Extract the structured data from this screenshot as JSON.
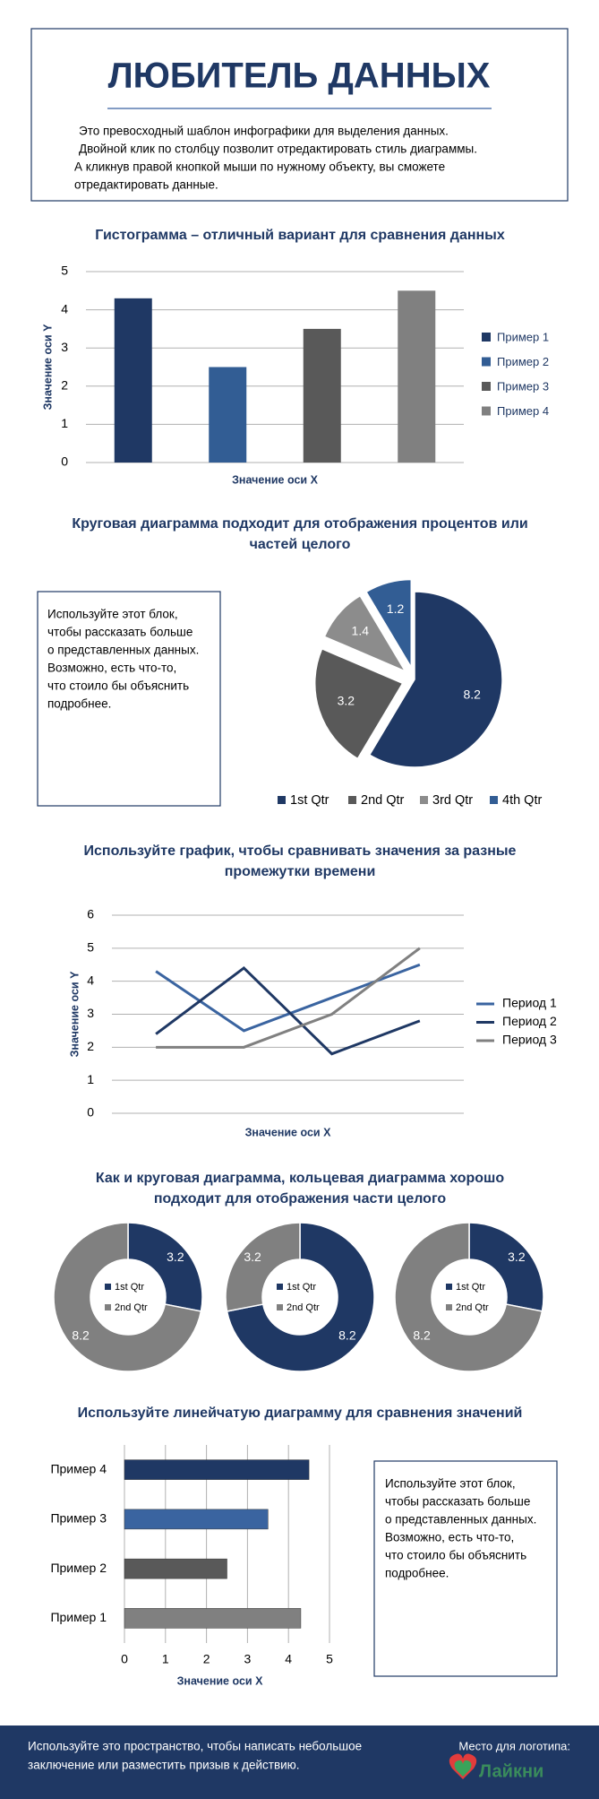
{
  "header": {
    "title": "ЛЮБИТЕЛЬ ДАННЫХ",
    "paragraph": [
      "Это превосходный шаблон инфографики для выделения данных.",
      "Двойной клик по столбцу позволит отредактировать стиль диаграммы.",
      "А кликнув правой кнопкой мыши по нужному объекту, вы сможете",
      "отредактировать данные."
    ]
  },
  "chart_data": [
    {
      "type": "bar",
      "title": "Гистограмма – отличный вариант для сравнения данных",
      "categories": [
        "Пример 1",
        "Пример 2",
        "Пример 3",
        "Пример 4"
      ],
      "values": [
        4.3,
        2.5,
        3.5,
        4.5
      ],
      "colors": [
        "#1f3864",
        "#325d94",
        "#595959",
        "#808080"
      ],
      "xlabel": "Значение оси X",
      "ylabel": "Значение оси Y",
      "ylim": [
        0,
        5
      ],
      "yticks": [
        0,
        1,
        2,
        3,
        4,
        5
      ],
      "grid": true,
      "legend": "right"
    },
    {
      "type": "pie",
      "title": "Круговая диаграмма подходит для отображения процентов или частей целого",
      "categories": [
        "1st Qtr",
        "2nd Qtr",
        "3rd Qtr",
        "4th Qtr"
      ],
      "values": [
        8.2,
        3.2,
        1.4,
        1.2
      ],
      "colors": [
        "#1f3864",
        "#595959",
        "#8c8c8c",
        "#325d94"
      ],
      "legend": "bottom"
    },
    {
      "type": "line",
      "title": "Используйте график, чтобы сравнивать значения за разные промежутки времени",
      "categories": [
        null,
        null,
        null,
        null
      ],
      "series": [
        {
          "name": "Период 1",
          "color": "#3a64a0",
          "values": [
            4.3,
            2.5,
            3.5,
            4.5
          ]
        },
        {
          "name": "Период 2",
          "color": "#1f3864",
          "values": [
            2.4,
            4.4,
            1.8,
            2.8
          ]
        },
        {
          "name": "Период 3",
          "color": "#808080",
          "values": [
            2,
            2,
            3,
            5
          ]
        }
      ],
      "xlabel": "Значение оси X",
      "ylabel": "Значение оси Y",
      "ylim": [
        0,
        6
      ],
      "yticks": [
        0,
        1,
        2,
        3,
        4,
        5,
        6
      ],
      "grid": true,
      "legend": "right"
    },
    {
      "type": "donut",
      "title": "Как и круговая диаграмма, кольцевая диаграмма хорошо подходит для отображения части целого",
      "categories": [
        "1st Qtr",
        "2nd Qtr"
      ],
      "values": [
        3.2,
        8.2
      ],
      "colors": [
        "#1f3864",
        "#808080"
      ],
      "legend": "center"
    },
    {
      "type": "donut",
      "categories": [
        "1st Qtr",
        "2nd Qtr"
      ],
      "values": [
        8.2,
        3.2
      ],
      "colors": [
        "#1f3864",
        "#808080"
      ],
      "legend": "center"
    },
    {
      "type": "donut",
      "categories": [
        "1st Qtr",
        "2nd Qtr"
      ],
      "values": [
        3.2,
        8.2
      ],
      "colors": [
        "#1f3864",
        "#808080"
      ],
      "legend": "center"
    },
    {
      "type": "bar",
      "orientation": "horizontal",
      "title": "Используйте линейчатую диаграмму для сравнения значений",
      "categories": [
        "Пример 1",
        "Пример 2",
        "Пример 3",
        "Пример 4"
      ],
      "values": [
        4.3,
        2.5,
        3.5,
        4.5
      ],
      "colors": [
        "#808080",
        "#595959",
        "#3a64a0",
        "#1f3864"
      ],
      "xlabel": "Значение оси X",
      "xlim": [
        0,
        5
      ],
      "xticks": [
        0,
        1,
        2,
        3,
        4,
        5
      ],
      "grid": true
    }
  ],
  "text_blocks": [
    {
      "lines": [
        "Используйте этот блок,",
        "чтобы рассказать больше",
        "о представленных данных.",
        "Возможно, есть что-то,",
        "что стоило бы объяснить",
        "подробнее."
      ]
    },
    {
      "lines": [
        "Используйте этот блок,",
        "чтобы рассказать больше",
        "о представленных данных.",
        "Возможно, есть что-то,",
        "что стоило бы объяснить",
        "подробнее."
      ]
    }
  ],
  "footer": {
    "lines": [
      "Используйте это пространство, чтобы написать небольшое",
      "заключение или разместить призыв к действию."
    ],
    "logo_label": "Место для логотипа:",
    "logo_text": "Лайкни"
  }
}
